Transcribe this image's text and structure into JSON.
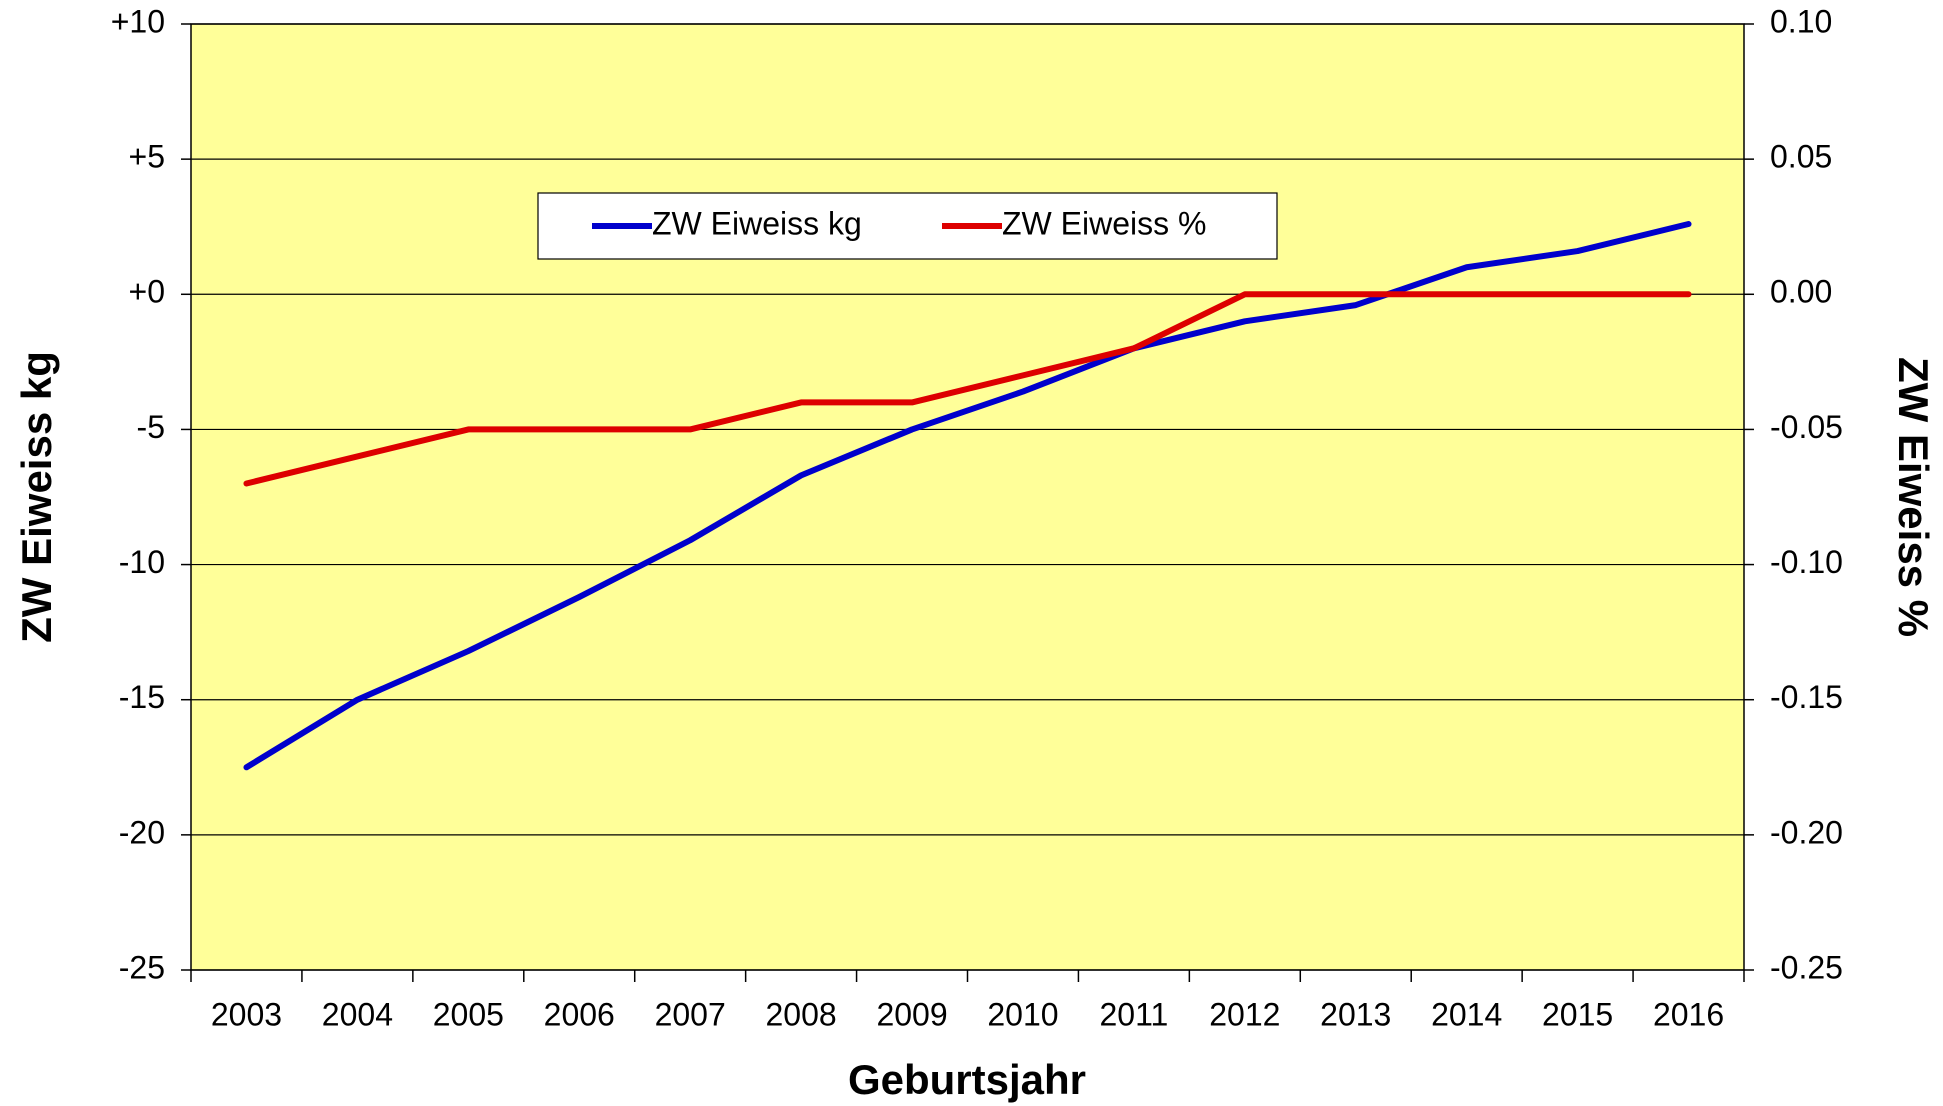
{
  "chart_data": {
    "type": "line",
    "x_label": "Geburtsjahr",
    "y_label": "ZW Eiweiss kg",
    "y2_label": "ZW Eiweiss %",
    "categories": [
      "2003",
      "2004",
      "2005",
      "2006",
      "2007",
      "2008",
      "2009",
      "2010",
      "2011",
      "2012",
      "2013",
      "2014",
      "2015",
      "2016"
    ],
    "series": [
      {
        "name": "ZW Eiweiss kg",
        "color": "#0000cc",
        "values": [
          -17.5,
          -15.0,
          -13.2,
          -11.2,
          -9.1,
          -6.7,
          -5.0,
          -3.6,
          -2.0,
          -1.0,
          -0.4,
          1.0,
          1.6,
          2.6
        ]
      },
      {
        "name": "ZW Eiweiss %",
        "color": "#dd0000",
        "axis": "y2",
        "values": [
          -0.07,
          -0.06,
          -0.05,
          -0.05,
          -0.05,
          -0.04,
          -0.04,
          -0.03,
          -0.02,
          0,
          0,
          0,
          0,
          0
        ]
      }
    ],
    "ylim": [
      -25,
      10
    ],
    "yticks": [
      {
        "value": 10,
        "label": "+10"
      },
      {
        "value": 5,
        "label": "+5"
      },
      {
        "value": 0,
        "label": "+0"
      },
      -5,
      -10,
      -15,
      -20,
      -25
    ],
    "y2lim": [
      -0.25,
      0.1
    ],
    "y2ticks": [
      {
        "value": 0.1,
        "label": "0.10"
      },
      0.05,
      {
        "value": 0,
        "label": "0.00"
      },
      -0.05,
      {
        "value": -0.1,
        "label": "-0.10"
      },
      -0.15,
      {
        "value": -0.2,
        "label": "-0.20"
      },
      -0.25
    ],
    "grid": true,
    "plot_background": "#ffff99",
    "legend_position": "top"
  }
}
